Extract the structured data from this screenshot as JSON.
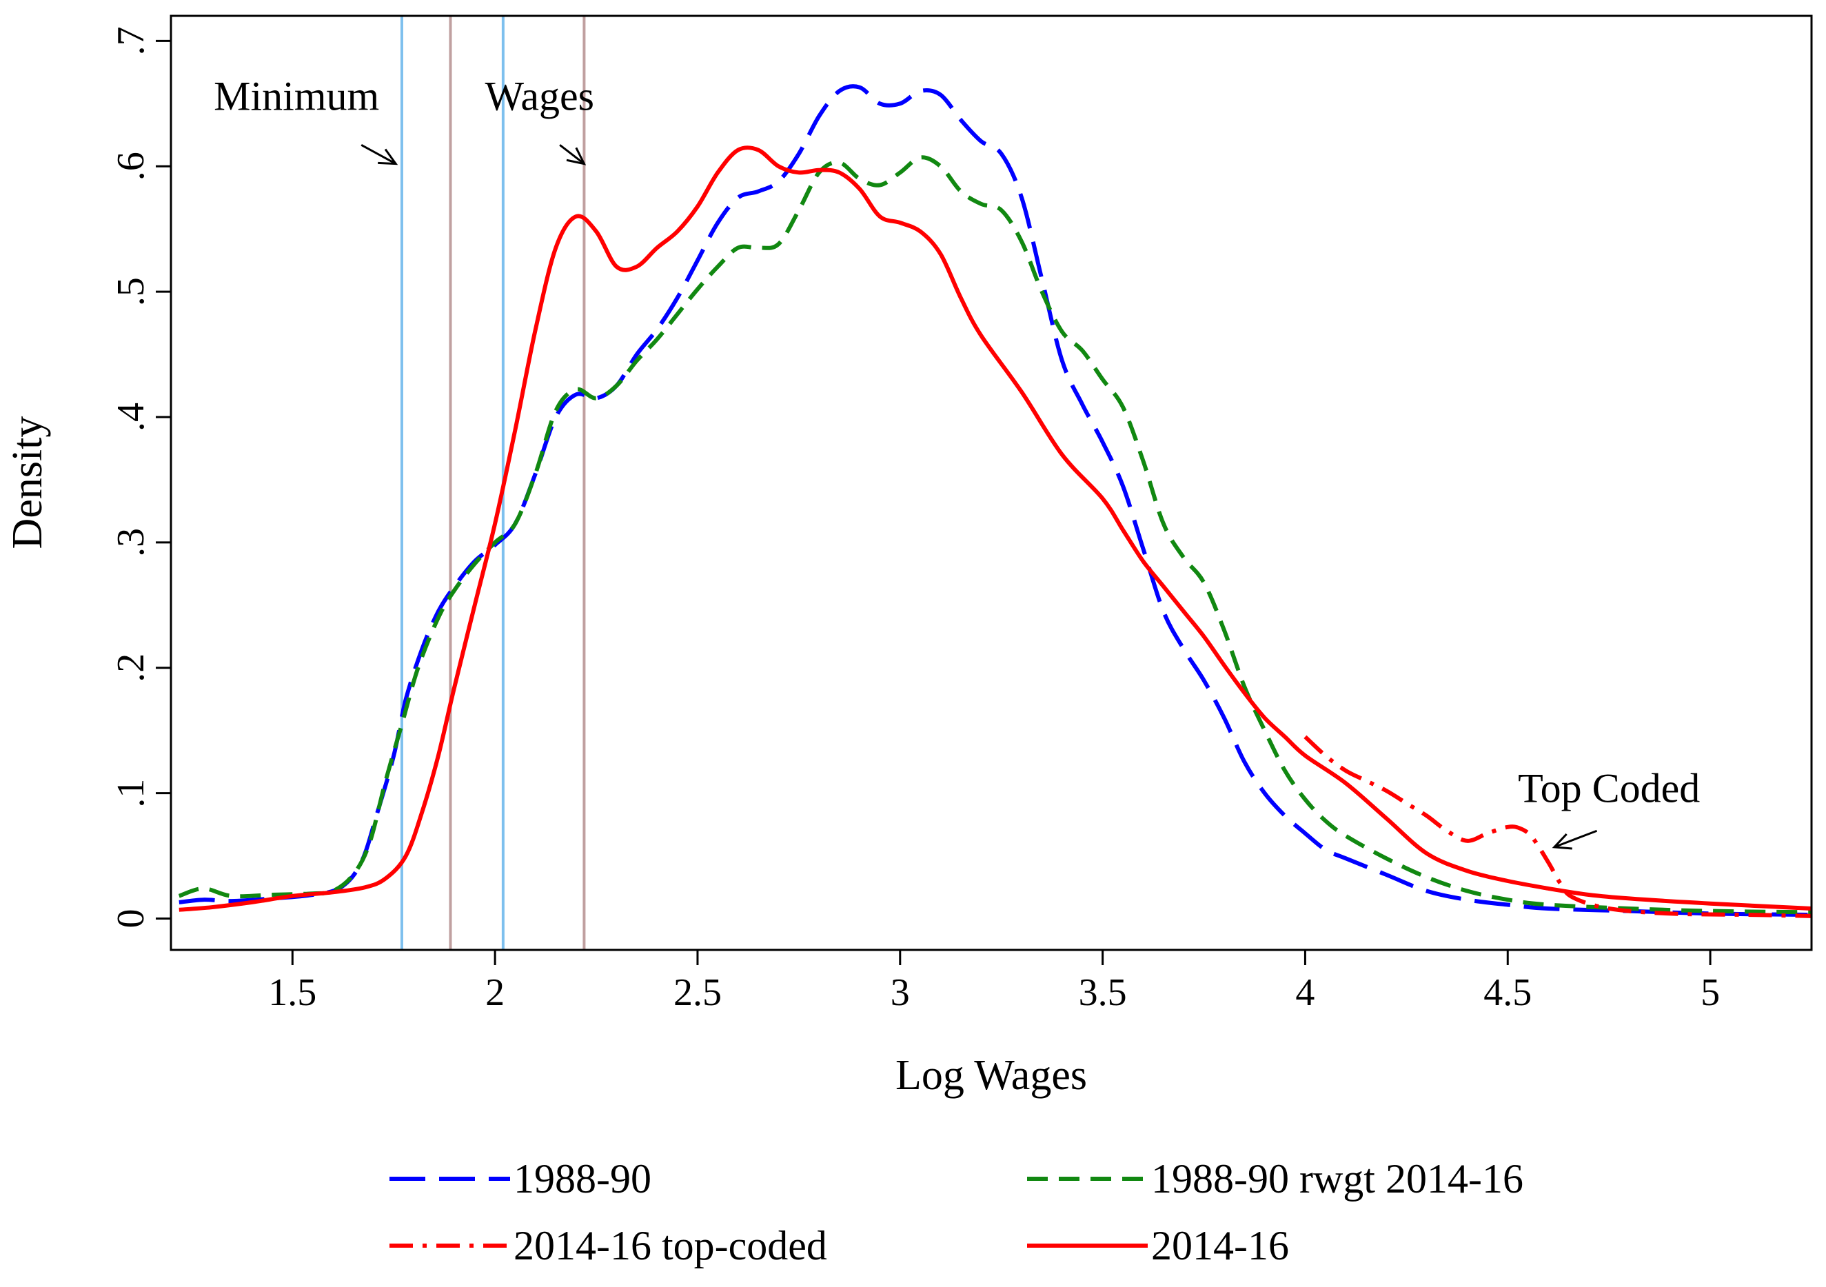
{
  "chart_data": {
    "type": "line",
    "title": "",
    "xlabel": "Log Wages",
    "ylabel": "Density",
    "xlim": [
      1.2,
      5.25
    ],
    "ylim": [
      -0.025,
      0.72
    ],
    "xticks": [
      1.5,
      2,
      2.5,
      3,
      3.5,
      4,
      4.5,
      5
    ],
    "xtick_labels": [
      "1.5",
      "2",
      "2.5",
      "3",
      "3.5",
      "4",
      "4.5",
      "5"
    ],
    "yticks": [
      0,
      0.1,
      0.2,
      0.3,
      0.4,
      0.5,
      0.6,
      0.7
    ],
    "ytick_labels": [
      "0",
      ".1",
      ".2",
      ".3",
      ".4",
      ".5",
      ".6",
      ".7"
    ],
    "grid": false,
    "legend_position": "bottom",
    "vertical_lines": [
      {
        "x": 1.77,
        "color": "#7EC0EE",
        "label": "minimum wage line"
      },
      {
        "x": 2.02,
        "color": "#7EC0EE",
        "label": "minimum wage line"
      },
      {
        "x": 1.89,
        "color": "#C0A0A0",
        "label": "minimum wage line"
      },
      {
        "x": 2.22,
        "color": "#C0A0A0",
        "label": "minimum wage line"
      }
    ],
    "annotations": [
      {
        "text": "Minimum",
        "x": 1.51,
        "y": 0.645,
        "arrow_to": [
          1.755,
          0.602
        ],
        "arrow_from": [
          1.67,
          0.617
        ]
      },
      {
        "text": "Wages",
        "x": 2.11,
        "y": 0.645,
        "arrow_to": [
          2.22,
          0.602
        ],
        "arrow_from": [
          2.16,
          0.617
        ]
      },
      {
        "text": "Top Coded",
        "x": 4.75,
        "y": 0.093,
        "arrow_to": [
          4.615,
          0.057
        ],
        "arrow_from": [
          4.72,
          0.07
        ]
      }
    ],
    "series": [
      {
        "name": "1988-90",
        "color": "#0000FF",
        "dash": "long-dash",
        "points": [
          [
            1.22,
            0.013
          ],
          [
            1.28,
            0.015
          ],
          [
            1.35,
            0.014
          ],
          [
            1.45,
            0.016
          ],
          [
            1.55,
            0.019
          ],
          [
            1.62,
            0.025
          ],
          [
            1.67,
            0.045
          ],
          [
            1.71,
            0.085
          ],
          [
            1.75,
            0.13
          ],
          [
            1.78,
            0.175
          ],
          [
            1.82,
            0.215
          ],
          [
            1.86,
            0.245
          ],
          [
            1.9,
            0.265
          ],
          [
            1.95,
            0.285
          ],
          [
            2.0,
            0.298
          ],
          [
            2.05,
            0.315
          ],
          [
            2.1,
            0.355
          ],
          [
            2.15,
            0.4
          ],
          [
            2.2,
            0.418
          ],
          [
            2.25,
            0.415
          ],
          [
            2.3,
            0.425
          ],
          [
            2.35,
            0.45
          ],
          [
            2.4,
            0.47
          ],
          [
            2.45,
            0.495
          ],
          [
            2.5,
            0.525
          ],
          [
            2.55,
            0.555
          ],
          [
            2.6,
            0.575
          ],
          [
            2.65,
            0.58
          ],
          [
            2.7,
            0.588
          ],
          [
            2.75,
            0.61
          ],
          [
            2.8,
            0.64
          ],
          [
            2.85,
            0.66
          ],
          [
            2.9,
            0.663
          ],
          [
            2.95,
            0.65
          ],
          [
            3.0,
            0.65
          ],
          [
            3.05,
            0.66
          ],
          [
            3.1,
            0.657
          ],
          [
            3.15,
            0.637
          ],
          [
            3.2,
            0.62
          ],
          [
            3.25,
            0.61
          ],
          [
            3.3,
            0.575
          ],
          [
            3.35,
            0.51
          ],
          [
            3.4,
            0.445
          ],
          [
            3.45,
            0.41
          ],
          [
            3.5,
            0.38
          ],
          [
            3.55,
            0.345
          ],
          [
            3.6,
            0.295
          ],
          [
            3.65,
            0.245
          ],
          [
            3.7,
            0.215
          ],
          [
            3.75,
            0.19
          ],
          [
            3.8,
            0.16
          ],
          [
            3.85,
            0.125
          ],
          [
            3.9,
            0.1
          ],
          [
            3.95,
            0.082
          ],
          [
            4.0,
            0.068
          ],
          [
            4.05,
            0.055
          ],
          [
            4.1,
            0.048
          ],
          [
            4.2,
            0.035
          ],
          [
            4.3,
            0.022
          ],
          [
            4.4,
            0.015
          ],
          [
            4.5,
            0.011
          ],
          [
            4.6,
            0.008
          ],
          [
            4.8,
            0.006
          ],
          [
            5.0,
            0.004
          ],
          [
            5.25,
            0.003
          ]
        ]
      },
      {
        "name": "1988-90 rwgt 2014-16",
        "color": "#118811",
        "dash": "short-dash",
        "points": [
          [
            1.22,
            0.018
          ],
          [
            1.28,
            0.024
          ],
          [
            1.35,
            0.018
          ],
          [
            1.45,
            0.019
          ],
          [
            1.55,
            0.02
          ],
          [
            1.6,
            0.022
          ],
          [
            1.65,
            0.035
          ],
          [
            1.69,
            0.06
          ],
          [
            1.73,
            0.11
          ],
          [
            1.77,
            0.155
          ],
          [
            1.81,
            0.2
          ],
          [
            1.86,
            0.24
          ],
          [
            1.9,
            0.262
          ],
          [
            1.95,
            0.283
          ],
          [
            2.0,
            0.3
          ],
          [
            2.05,
            0.315
          ],
          [
            2.1,
            0.355
          ],
          [
            2.15,
            0.405
          ],
          [
            2.2,
            0.422
          ],
          [
            2.25,
            0.415
          ],
          [
            2.3,
            0.425
          ],
          [
            2.35,
            0.445
          ],
          [
            2.4,
            0.462
          ],
          [
            2.45,
            0.482
          ],
          [
            2.5,
            0.502
          ],
          [
            2.55,
            0.52
          ],
          [
            2.6,
            0.535
          ],
          [
            2.65,
            0.535
          ],
          [
            2.7,
            0.538
          ],
          [
            2.75,
            0.565
          ],
          [
            2.8,
            0.595
          ],
          [
            2.85,
            0.603
          ],
          [
            2.9,
            0.59
          ],
          [
            2.95,
            0.585
          ],
          [
            3.0,
            0.595
          ],
          [
            3.05,
            0.607
          ],
          [
            3.1,
            0.6
          ],
          [
            3.15,
            0.58
          ],
          [
            3.2,
            0.57
          ],
          [
            3.25,
            0.565
          ],
          [
            3.3,
            0.54
          ],
          [
            3.35,
            0.5
          ],
          [
            3.4,
            0.468
          ],
          [
            3.45,
            0.453
          ],
          [
            3.5,
            0.43
          ],
          [
            3.55,
            0.408
          ],
          [
            3.6,
            0.365
          ],
          [
            3.65,
            0.315
          ],
          [
            3.7,
            0.288
          ],
          [
            3.75,
            0.268
          ],
          [
            3.8,
            0.23
          ],
          [
            3.85,
            0.185
          ],
          [
            3.9,
            0.15
          ],
          [
            3.95,
            0.118
          ],
          [
            4.0,
            0.095
          ],
          [
            4.05,
            0.078
          ],
          [
            4.1,
            0.066
          ],
          [
            4.2,
            0.048
          ],
          [
            4.3,
            0.033
          ],
          [
            4.4,
            0.022
          ],
          [
            4.5,
            0.015
          ],
          [
            4.6,
            0.011
          ],
          [
            4.8,
            0.008
          ],
          [
            5.0,
            0.006
          ],
          [
            5.25,
            0.005
          ]
        ]
      },
      {
        "name": "2014-16 top-coded",
        "color": "#FF0000",
        "dash": "dash-dot",
        "points": [
          [
            4.0,
            0.145
          ],
          [
            4.05,
            0.13
          ],
          [
            4.1,
            0.118
          ],
          [
            4.15,
            0.11
          ],
          [
            4.2,
            0.102
          ],
          [
            4.25,
            0.092
          ],
          [
            4.3,
            0.082
          ],
          [
            4.35,
            0.07
          ],
          [
            4.4,
            0.062
          ],
          [
            4.45,
            0.068
          ],
          [
            4.5,
            0.073
          ],
          [
            4.53,
            0.072
          ],
          [
            4.56,
            0.065
          ],
          [
            4.6,
            0.045
          ],
          [
            4.63,
            0.028
          ],
          [
            4.66,
            0.017
          ],
          [
            4.75,
            0.008
          ],
          [
            4.9,
            0.004
          ],
          [
            5.1,
            0.003
          ],
          [
            5.25,
            0.002
          ]
        ]
      },
      {
        "name": "2014-16",
        "color": "#FF0000",
        "dash": "solid",
        "points": [
          [
            1.22,
            0.007
          ],
          [
            1.3,
            0.009
          ],
          [
            1.4,
            0.013
          ],
          [
            1.5,
            0.018
          ],
          [
            1.6,
            0.021
          ],
          [
            1.68,
            0.025
          ],
          [
            1.73,
            0.032
          ],
          [
            1.78,
            0.05
          ],
          [
            1.82,
            0.085
          ],
          [
            1.86,
            0.13
          ],
          [
            1.9,
            0.185
          ],
          [
            1.95,
            0.25
          ],
          [
            2.0,
            0.315
          ],
          [
            2.05,
            0.39
          ],
          [
            2.1,
            0.47
          ],
          [
            2.15,
            0.535
          ],
          [
            2.2,
            0.56
          ],
          [
            2.25,
            0.548
          ],
          [
            2.3,
            0.52
          ],
          [
            2.35,
            0.52
          ],
          [
            2.4,
            0.535
          ],
          [
            2.45,
            0.548
          ],
          [
            2.5,
            0.568
          ],
          [
            2.55,
            0.595
          ],
          [
            2.6,
            0.613
          ],
          [
            2.65,
            0.613
          ],
          [
            2.7,
            0.6
          ],
          [
            2.75,
            0.595
          ],
          [
            2.8,
            0.597
          ],
          [
            2.85,
            0.595
          ],
          [
            2.9,
            0.582
          ],
          [
            2.95,
            0.56
          ],
          [
            3.0,
            0.555
          ],
          [
            3.05,
            0.548
          ],
          [
            3.1,
            0.53
          ],
          [
            3.15,
            0.495
          ],
          [
            3.2,
            0.465
          ],
          [
            3.3,
            0.42
          ],
          [
            3.4,
            0.37
          ],
          [
            3.5,
            0.335
          ],
          [
            3.55,
            0.31
          ],
          [
            3.6,
            0.285
          ],
          [
            3.65,
            0.265
          ],
          [
            3.7,
            0.245
          ],
          [
            3.75,
            0.225
          ],
          [
            3.8,
            0.202
          ],
          [
            3.85,
            0.18
          ],
          [
            3.9,
            0.16
          ],
          [
            3.95,
            0.145
          ],
          [
            4.0,
            0.13
          ],
          [
            4.1,
            0.108
          ],
          [
            4.2,
            0.08
          ],
          [
            4.3,
            0.052
          ],
          [
            4.4,
            0.038
          ],
          [
            4.5,
            0.03
          ],
          [
            4.6,
            0.024
          ],
          [
            4.7,
            0.019
          ],
          [
            4.8,
            0.016
          ],
          [
            5.0,
            0.012
          ],
          [
            5.25,
            0.008
          ]
        ]
      }
    ]
  }
}
